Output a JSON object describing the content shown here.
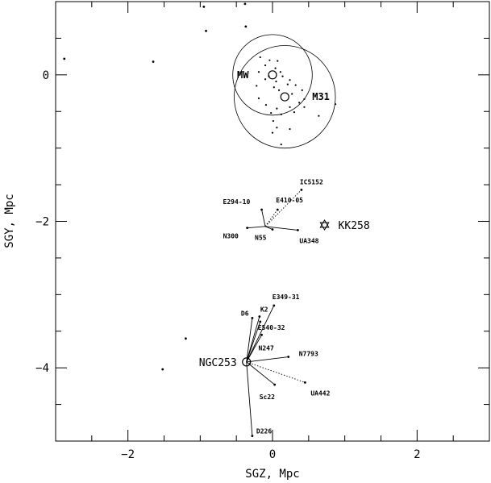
{
  "chart_data": {
    "type": "scatter",
    "title": "",
    "xlabel": "SGZ, Mpc",
    "ylabel": "SGY, Mpc",
    "xlim": [
      -3.0,
      3.0
    ],
    "ylim": [
      -5.0,
      1.0
    ],
    "xticks": [
      -2,
      0,
      2
    ],
    "yticks": [
      -4,
      -2,
      0
    ],
    "xtick_labels": [
      "−2",
      "0",
      "2"
    ],
    "ytick_labels": [
      "−4",
      "−2",
      "0"
    ],
    "grid": false,
    "field_points": [
      {
        "x": -0.95,
        "y": 0.93
      },
      {
        "x": -0.38,
        "y": 0.97
      },
      {
        "x": -0.92,
        "y": 0.6
      },
      {
        "x": -0.37,
        "y": 0.66
      },
      {
        "x": -2.88,
        "y": 0.22
      },
      {
        "x": -1.65,
        "y": 0.18
      },
      {
        "x": -1.2,
        "y": -3.6
      },
      {
        "x": -1.52,
        "y": -4.02
      }
    ],
    "group_points": [
      {
        "x": -0.17,
        "y": 0.24
      },
      {
        "x": -0.04,
        "y": 0.2
      },
      {
        "x": 0.07,
        "y": 0.19
      },
      {
        "x": -0.1,
        "y": 0.13
      },
      {
        "x": 0.04,
        "y": 0.09
      },
      {
        "x": -0.19,
        "y": 0.04
      },
      {
        "x": 0.11,
        "y": 0.04
      },
      {
        "x": -0.05,
        "y": -0.02
      },
      {
        "x": 0.14,
        "y": -0.02
      },
      {
        "x": -0.1,
        "y": -0.06
      },
      {
        "x": 0.05,
        "y": -0.09
      },
      {
        "x": 0.24,
        "y": -0.07
      },
      {
        "x": -0.22,
        "y": -0.15
      },
      {
        "x": 0.02,
        "y": -0.17
      },
      {
        "x": 0.21,
        "y": -0.13
      },
      {
        "x": 0.32,
        "y": -0.14
      },
      {
        "x": 0.09,
        "y": -0.21
      },
      {
        "x": 0.41,
        "y": -0.21
      },
      {
        "x": 0.27,
        "y": -0.26
      },
      {
        "x": -0.19,
        "y": -0.32
      },
      {
        "x": 0.44,
        "y": -0.33
      },
      {
        "x": 0.37,
        "y": -0.38
      },
      {
        "x": -0.09,
        "y": -0.41
      },
      {
        "x": 0.24,
        "y": -0.44
      },
      {
        "x": 0.06,
        "y": -0.46
      },
      {
        "x": 0.44,
        "y": -0.44
      },
      {
        "x": 0.3,
        "y": -0.51
      },
      {
        "x": -0.02,
        "y": -0.52
      },
      {
        "x": 0.12,
        "y": -0.54
      },
      {
        "x": 0.64,
        "y": -0.56
      },
      {
        "x": 0.01,
        "y": -0.63
      },
      {
        "x": 0.06,
        "y": -0.72
      },
      {
        "x": 0.24,
        "y": -0.74
      },
      {
        "x": 0.0,
        "y": -0.79
      },
      {
        "x": 0.12,
        "y": -0.95
      },
      {
        "x": 0.87,
        "y": -0.4
      }
    ],
    "halos": [
      {
        "name": "MW",
        "center": {
          "x": 0.0,
          "y": 0.0
        },
        "radius": 0.55,
        "label": "MW"
      },
      {
        "name": "M31",
        "center": {
          "x": 0.17,
          "y": -0.3
        },
        "radius": 0.7,
        "label": "M31"
      }
    ],
    "groups": [
      {
        "center_name": "KK258",
        "center": {
          "x": 0.72,
          "y": -2.05
        },
        "center_marker": "star",
        "center_label": "KK258",
        "hub": {
          "x": -0.1,
          "y": -2.07
        },
        "members": [
          {
            "name": "IC5152",
            "x": 0.4,
            "y": -1.57,
            "link": "dotted"
          },
          {
            "name": "E294-10",
            "x": -0.15,
            "y": -1.84,
            "link": "solid"
          },
          {
            "name": "E410-05",
            "x": 0.07,
            "y": -1.84,
            "link": "dotted"
          },
          {
            "name": "N300",
            "x": -0.35,
            "y": -2.09,
            "link": "solid"
          },
          {
            "name": "N55",
            "x": 0.0,
            "y": -2.11,
            "link": "solid"
          },
          {
            "name": "UA348",
            "x": 0.35,
            "y": -2.12,
            "link": "solid"
          }
        ]
      },
      {
        "center_name": "NGC253",
        "center": {
          "x": -0.36,
          "y": -3.92
        },
        "center_marker": "circle",
        "center_label": "NGC253",
        "hub": {
          "x": -0.36,
          "y": -3.92
        },
        "members": [
          {
            "name": "E349-31",
            "x": 0.02,
            "y": -3.15,
            "link": "solid"
          },
          {
            "name": "D6",
            "x": -0.28,
            "y": -3.32,
            "link": "solid"
          },
          {
            "name": "K2",
            "x": -0.18,
            "y": -3.3,
            "link": "solid"
          },
          {
            "name": "E540-32",
            "x": -0.17,
            "y": -3.37,
            "link": "solid"
          },
          {
            "name": "N247",
            "x": -0.15,
            "y": -3.55,
            "link": "solid"
          },
          {
            "name": "N7793",
            "x": 0.22,
            "y": -3.85,
            "link": "solid"
          },
          {
            "name": "UA442",
            "x": 0.45,
            "y": -4.2,
            "link": "dotted"
          },
          {
            "name": "Sc22",
            "x": 0.03,
            "y": -4.23,
            "link": "solid"
          },
          {
            "name": "D226",
            "x": -0.28,
            "y": -4.93,
            "link": "solid"
          }
        ]
      }
    ]
  }
}
